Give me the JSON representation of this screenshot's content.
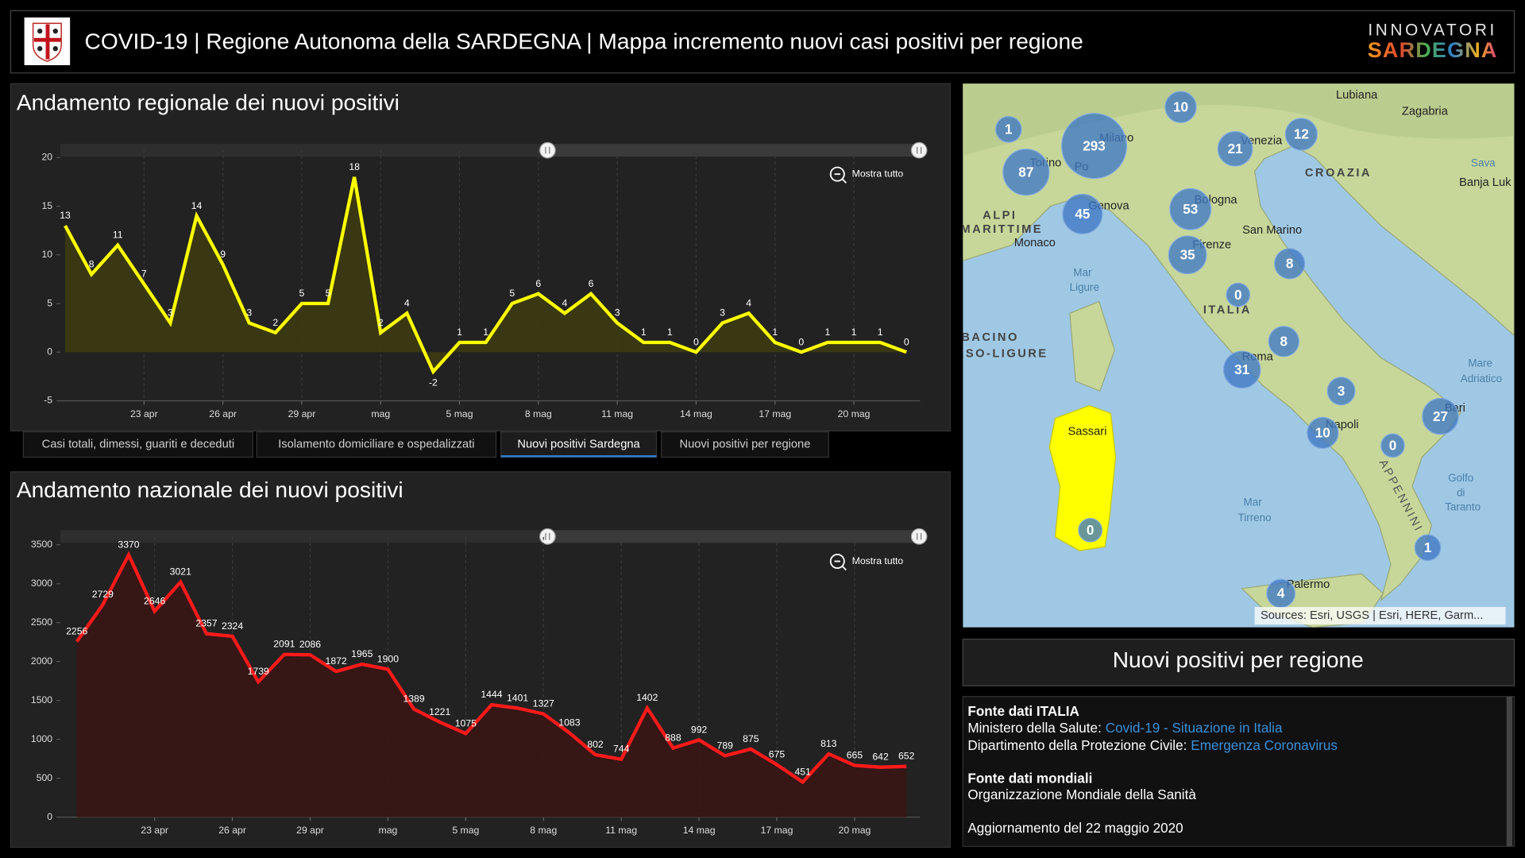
{
  "header": {
    "title": "COVID-19 | Regione Autonoma della SARDEGNA | Mappa incremento nuovi casi positivi per regione",
    "brand_top": "INNOVATORI",
    "brand_bottom": "SARDEGNA"
  },
  "chart_data": [
    {
      "type": "area",
      "title": "Andamento regionale dei nuovi positivi",
      "categories": [
        null,
        null,
        null,
        "23 apr",
        null,
        null,
        "26 apr",
        null,
        null,
        "29 apr",
        null,
        null,
        "mag",
        null,
        null,
        "5 mag",
        null,
        null,
        "8 mag",
        null,
        null,
        "11 mag",
        null,
        null,
        "14 mag",
        null,
        null,
        "17 mag",
        null,
        null,
        "20 mag",
        null,
        null
      ],
      "values": [
        13,
        8,
        11,
        7,
        3,
        14,
        9,
        3,
        2,
        5,
        5,
        18,
        2,
        4,
        -2,
        1,
        1,
        5,
        6,
        4,
        6,
        3,
        1,
        1,
        0,
        3,
        4,
        1,
        0,
        1,
        1,
        1,
        0
      ],
      "color": "#ffff00",
      "area_color": "#3d3b12",
      "ylim": [
        -5,
        20
      ],
      "yticks": [
        -5,
        0,
        5,
        10,
        15,
        20
      ],
      "grid": true,
      "zoom_button": "Mostra tutto"
    },
    {
      "type": "area",
      "title": "Andamento nazionale dei nuovi positivi",
      "categories": [
        null,
        null,
        null,
        "23 apr",
        null,
        null,
        "26 apr",
        null,
        null,
        "29 apr",
        null,
        null,
        "mag",
        null,
        null,
        "5 mag",
        null,
        null,
        "8 mag",
        null,
        null,
        "11 mag",
        null,
        null,
        "14 mag",
        null,
        null,
        "17 mag",
        null,
        null,
        "20 mag",
        null,
        null
      ],
      "values": [
        2256,
        2729,
        3370,
        2646,
        3021,
        2357,
        2324,
        1739,
        2091,
        2086,
        1872,
        1965,
        1900,
        1389,
        1221,
        1075,
        1444,
        1401,
        1327,
        1083,
        802,
        744,
        1402,
        888,
        992,
        789,
        875,
        675,
        451,
        813,
        665,
        642,
        652
      ],
      "color": "#ff1a1a",
      "area_color": "#3a1515",
      "ylim": [
        0,
        3500
      ],
      "yticks": [
        0,
        500,
        1000,
        1500,
        2000,
        2500,
        3000,
        3500
      ],
      "grid": true,
      "zoom_button": "Mostra tutto"
    }
  ],
  "tabs": [
    "Casi totali, dimessi, guariti e deceduti",
    "Isolamento domiciliare e ospedalizzati",
    "Nuovi positivi Sardegna",
    "Nuovi positivi per regione"
  ],
  "selected_tab": 2,
  "map": {
    "bubbles": [
      10,
      1,
      293,
      87,
      12,
      21,
      53,
      45,
      35,
      8,
      0,
      8,
      31,
      3,
      27,
      10,
      0,
      0,
      1,
      4
    ],
    "places": [
      "Lubiana",
      "Zagabria",
      "Milano",
      "Torino",
      "Po",
      "Venezia",
      "CROAZIA",
      "Sava",
      "Banja Luk",
      "Genova",
      "Bologna",
      "ALPI",
      "MARITTIME",
      "Monaco",
      "Firenze",
      "San Marino",
      "Mar",
      "Ligure",
      "ITALIA",
      "BACINO",
      "RSO-LIGURE",
      "Roma",
      "Mare",
      "Adriatico",
      "Bari",
      "Napoli",
      "Sassari",
      "Golfo",
      "di",
      "Taranto",
      "Mar",
      "Tirreno",
      "APPENNINI",
      "Palermo"
    ],
    "attribution": "Sources: Esri, USGS | Esri, HERE, Garm...",
    "highlight_color": "#ffff00"
  },
  "panel_title": "Nuovi positivi per regione",
  "info": {
    "italy_heading": "Fonte dati ITALIA",
    "italy_sources": [
      {
        "label": "Ministero della Salute:",
        "link": "Covid-19 - Situazione in Italia"
      },
      {
        "label": "Dipartimento della Protezione Civile:",
        "link": "Emergenza Coronavirus"
      }
    ],
    "world_heading": "Fonte dati mondiali",
    "world_source": "Organizzazione Mondiale della Sanità",
    "updated": "Aggiornamento del 22 maggio 2020"
  }
}
